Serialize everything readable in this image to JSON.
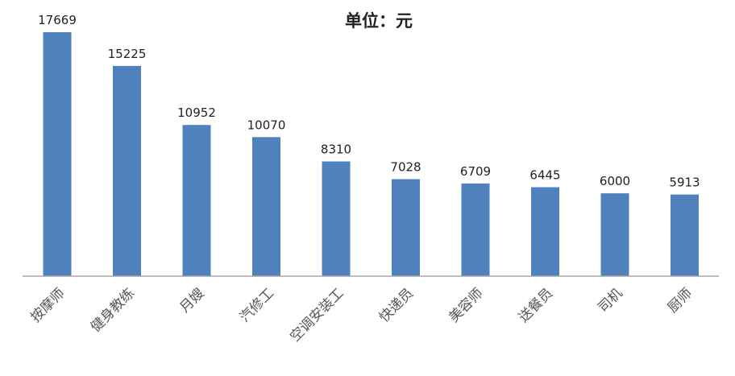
{
  "chart_data": {
    "type": "bar",
    "title": "单位：元",
    "categories": [
      "按摩师",
      "健身教练",
      "月嫂",
      "汽修工",
      "空调安装工",
      "快递员",
      "美容师",
      "送餐员",
      "司机",
      "厨师"
    ],
    "values": [
      17669,
      15225,
      10952,
      10070,
      8310,
      7028,
      6709,
      6445,
      6000,
      5913
    ],
    "xlabel": "",
    "ylabel": "",
    "ylim": [
      0,
      20000
    ],
    "grid": false,
    "legend": "none",
    "bar_color": "#4f81bd",
    "axis_color": "#a6a6a6"
  }
}
